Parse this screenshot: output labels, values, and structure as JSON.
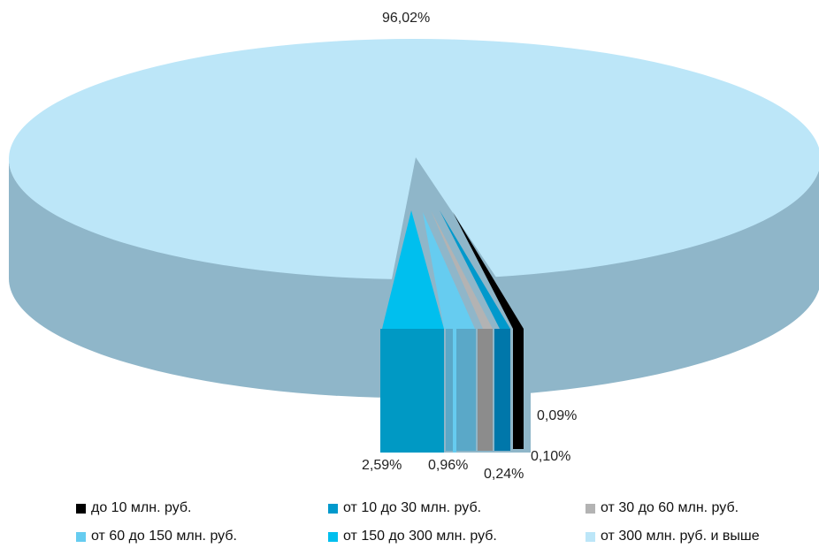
{
  "chart_data": {
    "type": "pie",
    "title": "",
    "slices": [
      {
        "label": "до 10 млн. руб.",
        "value": 0.09,
        "value_label": "0,09%",
        "color": "#000000"
      },
      {
        "label": "от 10 до 30 млн. руб.",
        "value": 0.1,
        "value_label": "0,10%",
        "color": "#0099cc"
      },
      {
        "label": "от 30 до 60 млн. руб.",
        "value": 0.24,
        "value_label": "0,24%",
        "color": "#b3b3b3"
      },
      {
        "label": "от 60 до 150 млн. руб.",
        "value": 0.96,
        "value_label": "0,96%",
        "color": "#66ccf0"
      },
      {
        "label": "от 150 до 300 млн. руб.",
        "value": 2.59,
        "value_label": "2,59%",
        "color": "#00bfee"
      },
      {
        "label": "от 300 млн. руб. и выше",
        "value": 96.02,
        "value_label": "96,02%",
        "color": "#bce6f8"
      }
    ],
    "legend_position": "bottom",
    "style": "3d-exploded"
  }
}
